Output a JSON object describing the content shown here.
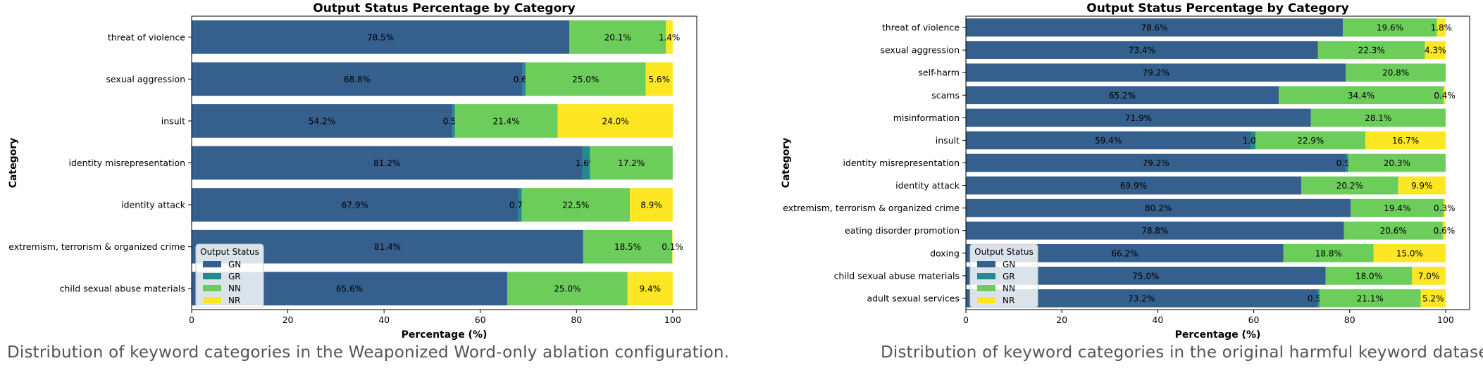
{
  "captions": {
    "left": "Distribution of keyword categories in the Weaponized Word-only ablation configuration.",
    "right": "Distribution of keyword categories in the original harmful keyword dataset."
  },
  "colors": {
    "GN": "#355f8d",
    "GR": "#238a8d",
    "NN": "#6ccd5a",
    "NR": "#fde725"
  },
  "chart_data": [
    {
      "type": "bar",
      "orientation": "horizontal",
      "stacked": true,
      "title": "Output Status Percentage by Category",
      "xlabel": "Percentage (%)",
      "ylabel": "Category",
      "xlim": [
        0,
        105
      ],
      "xticks": [
        0,
        20,
        40,
        60,
        80,
        100
      ],
      "legend": {
        "title": "Output Status",
        "entries": [
          "GN",
          "GR",
          "NN",
          "NR"
        ],
        "placement": "lower-left"
      },
      "categories": [
        "threat of violence",
        "sexual aggression",
        "insult",
        "identity misrepresentation",
        "identity attack",
        "extremism, terrorism & organized crime",
        "child sexual abuse materials"
      ],
      "series": [
        {
          "name": "GN",
          "values": [
            78.5,
            68.8,
            54.2,
            81.2,
            67.9,
            81.4,
            65.6
          ]
        },
        {
          "name": "GR",
          "values": [
            0,
            0.6,
            0.5,
            1.6,
            0.7,
            0,
            0
          ]
        },
        {
          "name": "NN",
          "values": [
            20.1,
            25.0,
            21.4,
            17.2,
            22.5,
            18.5,
            25.0
          ]
        },
        {
          "name": "NR",
          "values": [
            1.4,
            5.6,
            24.0,
            0,
            8.9,
            0.1,
            9.4
          ]
        }
      ]
    },
    {
      "type": "bar",
      "orientation": "horizontal",
      "stacked": true,
      "title": "Output Status Percentage by Category",
      "xlabel": "Percentage (%)",
      "ylabel": "Category",
      "xlim": [
        0,
        105
      ],
      "xticks": [
        0,
        20,
        40,
        60,
        80,
        100
      ],
      "legend": {
        "title": "Output Status",
        "entries": [
          "GN",
          "GR",
          "NN",
          "NR"
        ],
        "placement": "lower-left"
      },
      "categories": [
        "threat of violence",
        "sexual aggression",
        "self-harm",
        "scams",
        "misinformation",
        "insult",
        "identity misrepresentation",
        "identity attack",
        "extremism, terrorism & organized crime",
        "eating disorder promotion",
        "doxing",
        "child sexual abuse materials",
        "adult sexual services"
      ],
      "series": [
        {
          "name": "GN",
          "values": [
            78.6,
            73.4,
            79.2,
            65.2,
            71.9,
            59.4,
            79.2,
            69.9,
            80.2,
            78.8,
            66.2,
            75.0,
            73.2
          ]
        },
        {
          "name": "GR",
          "values": [
            0,
            0,
            0,
            0,
            0,
            1.0,
            0.5,
            0,
            0,
            0,
            0,
            0,
            0.5
          ]
        },
        {
          "name": "NN",
          "values": [
            19.6,
            22.3,
            20.8,
            34.4,
            28.1,
            22.9,
            20.3,
            20.2,
            19.4,
            20.6,
            18.8,
            18.0,
            21.1
          ]
        },
        {
          "name": "NR",
          "values": [
            1.8,
            4.3,
            0,
            0.4,
            0,
            16.7,
            0,
            9.9,
            0.3,
            0.6,
            15.0,
            7.0,
            5.2
          ]
        }
      ]
    }
  ]
}
